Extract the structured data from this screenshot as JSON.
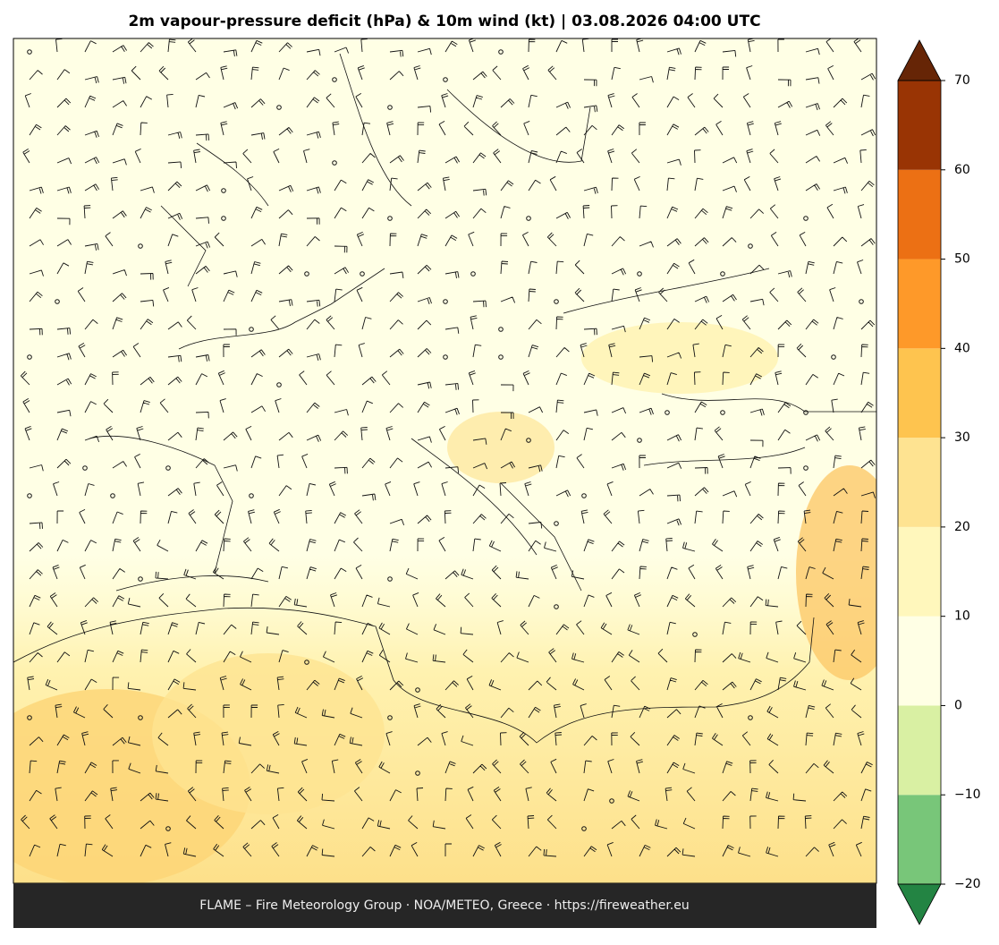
{
  "header": {
    "title": "2m vapour-pressure deficit (hPa) & 10m wind (kt)  |  03.08.2026 04:00 UTC"
  },
  "colorbar": {
    "lim": [
      -20,
      70
    ],
    "ticks": [
      {
        "value": -20,
        "label": "−20"
      },
      {
        "value": -10,
        "label": "−10"
      },
      0,
      10,
      20,
      30,
      40,
      50,
      60,
      70
    ],
    "colors": [
      "#78c679",
      "#d9f0a3",
      "#ffffe5",
      "#fff7bc",
      "#fee391",
      "#fec44f",
      "#fe9929",
      "#ec7014",
      "#993404"
    ],
    "under_color": "#238443",
    "over_color": "#662506"
  },
  "footer": {
    "text": "FLAME – Fire Meteorology Group · NOA/METEO, Greece · https://fireweather.eu"
  }
}
